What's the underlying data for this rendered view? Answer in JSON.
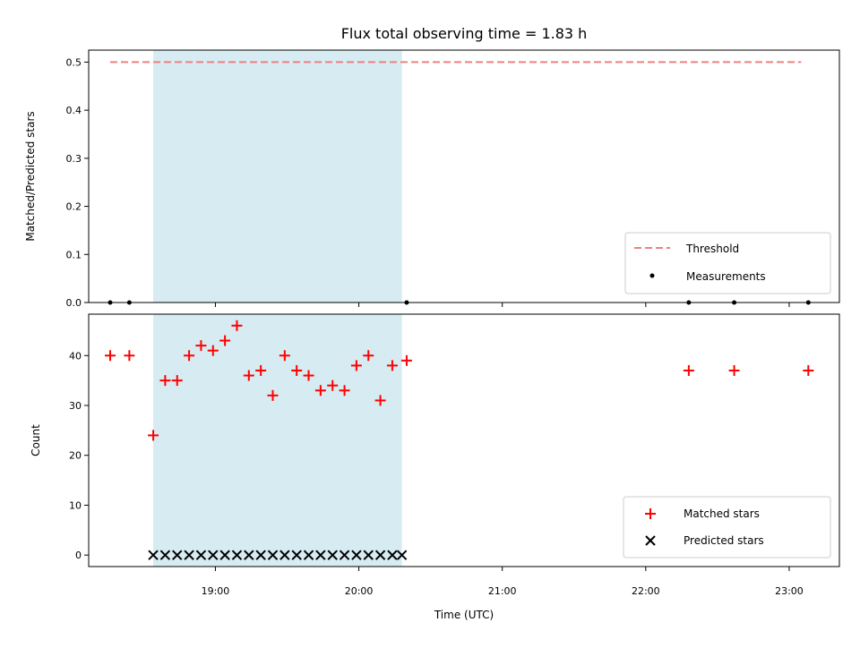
{
  "chart_data": [
    {
      "type": "scatter",
      "title": "Flux total observing time = 1.83 h",
      "xlabel": "",
      "ylabel": "Matched/Predicted stars",
      "xlim": [
        "18:07",
        "23:21"
      ],
      "ylim": [
        0,
        0.525
      ],
      "yticks": [
        0.0,
        0.1,
        0.2,
        0.3,
        0.4,
        0.5
      ],
      "ytick_labels": [
        "0.0",
        "0.1",
        "0.2",
        "0.3",
        "0.4",
        "0.5"
      ],
      "legend": {
        "placement": "lower-right",
        "entries": [
          "Threshold",
          "Measurements"
        ]
      },
      "threshold": {
        "name": "Threshold",
        "value": 0.5,
        "x_start": "18:16",
        "x_end": "23:05",
        "color": "#f08080"
      },
      "shaded_interval": [
        "18:34",
        "20:18"
      ],
      "shaded_color": "#add8e6",
      "series": [
        {
          "name": "Measurements",
          "color": "#000000",
          "x": [
            "18:16",
            "18:24",
            "20:20",
            "22:18",
            "22:37",
            "23:08"
          ],
          "values": [
            0,
            0,
            0,
            0,
            0,
            0
          ]
        }
      ]
    },
    {
      "type": "scatter",
      "xlabel": "Time (UTC)",
      "ylabel": "Count",
      "xlim": [
        "18:07",
        "23:21"
      ],
      "ylim": [
        -2.3,
        48.3
      ],
      "yticks": [
        0,
        10,
        20,
        30,
        40
      ],
      "ytick_labels": [
        "0",
        "10",
        "20",
        "30",
        "40"
      ],
      "xticks": [
        "19:00",
        "20:00",
        "21:00",
        "22:00",
        "23:00"
      ],
      "xtick_labels": [
        "19:00",
        "20:00",
        "21:00",
        "22:00",
        "23:00"
      ],
      "legend": {
        "placement": "lower-right",
        "entries": [
          "Matched stars",
          "Predicted stars"
        ]
      },
      "shaded_interval": [
        "18:34",
        "20:18"
      ],
      "shaded_color": "#add8e6",
      "series": [
        {
          "name": "Matched stars",
          "marker": "plus",
          "color": "#ff0000",
          "x": [
            "18:16",
            "18:24",
            "18:34",
            "18:39",
            "18:44",
            "18:49",
            "18:54",
            "18:59",
            "19:04",
            "19:09",
            "19:14",
            "19:19",
            "19:24",
            "19:29",
            "19:34",
            "19:39",
            "19:44",
            "19:49",
            "19:54",
            "19:59",
            "20:04",
            "20:09",
            "20:14",
            "20:20",
            "22:18",
            "22:37",
            "23:08"
          ],
          "values": [
            40,
            40,
            24,
            35,
            35,
            40,
            42,
            41,
            43,
            46,
            36,
            37,
            32,
            40,
            37,
            36,
            33,
            34,
            33,
            38,
            40,
            31,
            38,
            39,
            37,
            37,
            37
          ]
        },
        {
          "name": "Predicted stars",
          "marker": "x",
          "color": "#000000",
          "x": [
            "18:34",
            "18:39",
            "18:44",
            "18:49",
            "18:54",
            "18:59",
            "19:04",
            "19:09",
            "19:14",
            "19:19",
            "19:24",
            "19:29",
            "19:34",
            "19:39",
            "19:44",
            "19:49",
            "19:54",
            "19:59",
            "20:04",
            "20:09",
            "20:14",
            "20:18"
          ],
          "values": [
            0,
            0,
            0,
            0,
            0,
            0,
            0,
            0,
            0,
            0,
            0,
            0,
            0,
            0,
            0,
            0,
            0,
            0,
            0,
            0,
            0,
            0
          ]
        }
      ]
    }
  ]
}
